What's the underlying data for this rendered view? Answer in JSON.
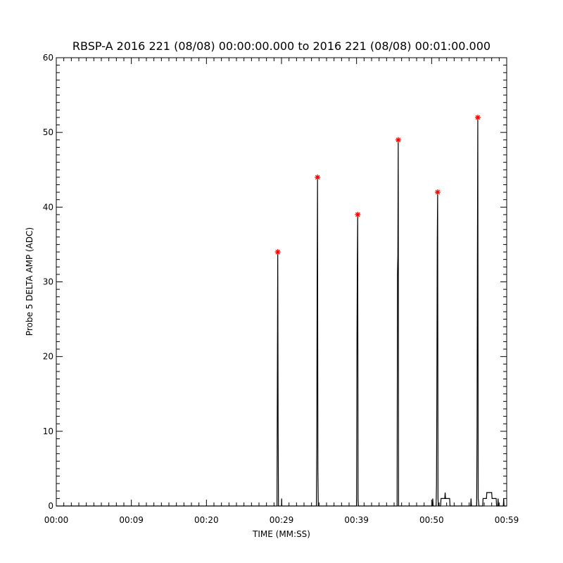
{
  "chart_data": {
    "type": "line",
    "title": "RBSP-A 2016 221 (08/08) 00:00:00.000 to 2016 221 (08/08) 00:01:00.000",
    "xlabel": "TIME (MM:SS)",
    "ylabel": "Probe 5 DELTA AMP (ADC)",
    "xlim": [
      0,
      60
    ],
    "ylim": [
      0,
      60
    ],
    "x_ticks": [
      {
        "x": 0,
        "label": "00:00"
      },
      {
        "x": 10,
        "label": "00:09"
      },
      {
        "x": 20,
        "label": "00:20"
      },
      {
        "x": 30,
        "label": "00:29"
      },
      {
        "x": 40,
        "label": "00:39"
      },
      {
        "x": 50,
        "label": "00:50"
      },
      {
        "x": 60,
        "label": "00:59"
      }
    ],
    "y_ticks": [
      {
        "y": 0,
        "label": "0"
      },
      {
        "y": 10,
        "label": "10"
      },
      {
        "y": 20,
        "label": "20"
      },
      {
        "y": 30,
        "label": "30"
      },
      {
        "y": 40,
        "label": "40"
      },
      {
        "y": 50,
        "label": "50"
      },
      {
        "y": 60,
        "label": "60"
      }
    ],
    "grid": false,
    "line_color": "#000000",
    "marker_color": "#ff0000",
    "series": [
      {
        "points": [
          [
            0,
            0
          ],
          [
            29.4,
            0
          ],
          [
            29.45,
            17.5
          ],
          [
            29.5,
            34
          ],
          [
            29.55,
            10.5
          ],
          [
            29.6,
            0
          ],
          [
            30.0,
            0
          ],
          [
            30.02,
            1
          ],
          [
            30.04,
            0
          ],
          [
            34.65,
            0
          ],
          [
            34.7,
            8
          ],
          [
            34.75,
            30
          ],
          [
            34.8,
            44
          ],
          [
            34.85,
            5
          ],
          [
            34.9,
            0
          ],
          [
            40.0,
            0
          ],
          [
            40.05,
            21.5
          ],
          [
            40.1,
            32
          ],
          [
            40.15,
            39
          ],
          [
            40.2,
            1
          ],
          [
            40.25,
            0
          ],
          [
            45.4,
            0
          ],
          [
            45.45,
            31
          ],
          [
            45.5,
            33.5
          ],
          [
            45.55,
            49
          ],
          [
            45.6,
            0
          ],
          [
            50.1,
            0
          ],
          [
            50.15,
            1
          ],
          [
            50.2,
            0
          ],
          [
            50.6,
            0
          ],
          [
            50.65,
            3
          ],
          [
            50.7,
            16
          ],
          [
            50.75,
            35.5
          ],
          [
            50.8,
            42
          ],
          [
            50.85,
            1
          ],
          [
            50.9,
            0
          ],
          [
            51.2,
            0
          ],
          [
            51.25,
            1
          ],
          [
            51.75,
            1
          ],
          [
            51.8,
            1.8
          ],
          [
            51.85,
            1
          ],
          [
            52.4,
            1
          ],
          [
            52.45,
            0
          ],
          [
            55.2,
            0
          ],
          [
            55.25,
            1
          ],
          [
            55.3,
            0
          ],
          [
            56.0,
            0
          ],
          [
            56.05,
            10
          ],
          [
            56.1,
            34
          ],
          [
            56.15,
            52
          ],
          [
            56.2,
            1
          ],
          [
            56.3,
            0
          ],
          [
            56.8,
            0
          ],
          [
            56.85,
            1
          ],
          [
            57.3,
            1
          ],
          [
            57.35,
            1.8
          ],
          [
            58.0,
            1.8
          ],
          [
            58.05,
            1
          ],
          [
            58.6,
            1
          ],
          [
            58.65,
            0
          ],
          [
            58.8,
            0
          ],
          [
            58.85,
            1
          ],
          [
            58.9,
            0
          ],
          [
            59.55,
            0
          ],
          [
            59.6,
            1
          ],
          [
            59.65,
            0
          ],
          [
            60,
            0
          ]
        ]
      }
    ],
    "peaks": [
      {
        "x": 29.5,
        "y": 34
      },
      {
        "x": 34.8,
        "y": 44
      },
      {
        "x": 40.15,
        "y": 39
      },
      {
        "x": 45.55,
        "y": 49
      },
      {
        "x": 50.8,
        "y": 42
      },
      {
        "x": 56.15,
        "y": 52
      }
    ]
  }
}
